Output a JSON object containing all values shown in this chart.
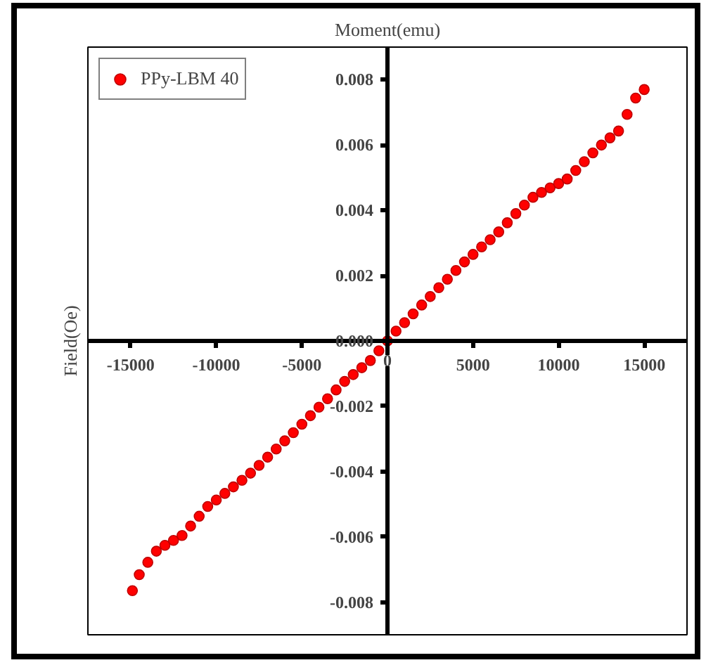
{
  "chart_data": {
    "type": "scatter",
    "xlabel": "Moment(emu)",
    "ylabel": "Field(Oe)",
    "xlim": [
      -17500,
      17500
    ],
    "ylim": [
      -0.009,
      0.009
    ],
    "xticks": [
      -15000,
      -10000,
      -5000,
      0,
      5000,
      10000,
      15000
    ],
    "yticks": [
      {
        "value": -0.008,
        "label": "-0.008"
      },
      {
        "value": -0.006,
        "label": "-0.006"
      },
      {
        "value": -0.004,
        "label": "-0.004"
      },
      {
        "value": -0.002,
        "label": "-0.002"
      },
      {
        "value": 0,
        "label": "0.000"
      },
      {
        "value": 0.002,
        "label": "0.002"
      },
      {
        "value": 0.004,
        "label": "0.004"
      },
      {
        "value": 0.006,
        "label": "0.006"
      },
      {
        "value": 0.008,
        "label": "0.008"
      }
    ],
    "grid": false,
    "legend": "top left",
    "marker": "circle",
    "series": [
      {
        "name": "PPy-LBM 40",
        "color": "#ff0000",
        "x": [
          -14900,
          -14500,
          -14000,
          -13500,
          -13000,
          -12500,
          -12000,
          -11500,
          -11000,
          -10500,
          -10000,
          -9500,
          -9000,
          -8500,
          -8000,
          -7500,
          -7000,
          -6500,
          -6000,
          -5500,
          -5000,
          -4500,
          -4000,
          -3500,
          -3000,
          -2500,
          -2000,
          -1500,
          -1000,
          -500,
          0,
          500,
          1000,
          1500,
          2000,
          2500,
          3000,
          3500,
          4000,
          4500,
          5000,
          5500,
          6000,
          6500,
          7000,
          7500,
          8000,
          8500,
          9000,
          9500,
          10000,
          10500,
          11000,
          11500,
          12000,
          12500,
          13000,
          13500,
          14000,
          14500,
          15000
        ],
        "values": [
          -0.00765,
          -0.00716,
          -0.00678,
          -0.00644,
          -0.00626,
          -0.00611,
          -0.00596,
          -0.00567,
          -0.00537,
          -0.00507,
          -0.00487,
          -0.00467,
          -0.00447,
          -0.00427,
          -0.00405,
          -0.00381,
          -0.00356,
          -0.00331,
          -0.00306,
          -0.00281,
          -0.00255,
          -0.00229,
          -0.00203,
          -0.00177,
          -0.0015,
          -0.00124,
          -0.00103,
          -0.00082,
          -0.0006,
          -0.0003,
          0,
          0.0003,
          0.00056,
          0.00083,
          0.0011,
          0.00136,
          0.00163,
          0.00189,
          0.00216,
          0.00242,
          0.00265,
          0.00288,
          0.0031,
          0.00334,
          0.00362,
          0.0039,
          0.00416,
          0.0044,
          0.00455,
          0.00469,
          0.00482,
          0.00496,
          0.00522,
          0.00549,
          0.00576,
          0.006,
          0.00622,
          0.00643,
          0.00694,
          0.00744,
          0.0077
        ]
      }
    ]
  }
}
